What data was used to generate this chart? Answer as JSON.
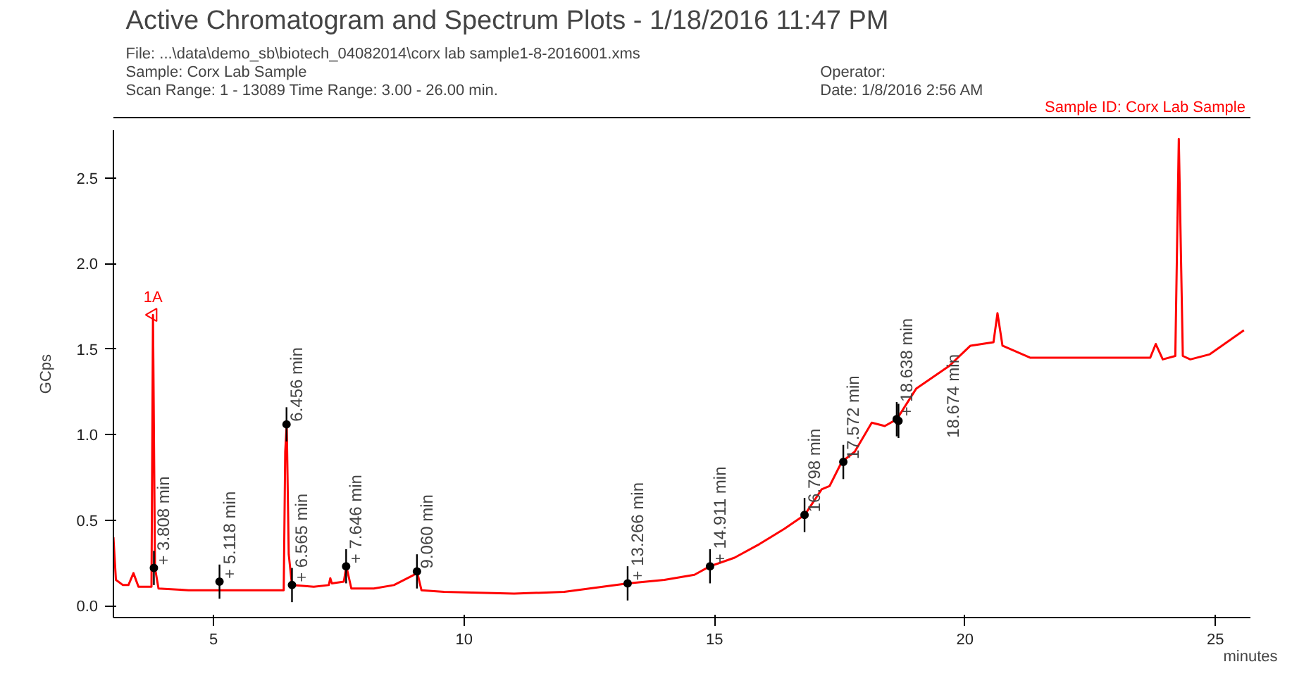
{
  "chart_data": {
    "type": "line",
    "title": "Active Chromatogram and Spectrum Plots - 1/18/2016 11:47 PM",
    "subtitle": "File: ...\\data\\demo_sb\\biotech_04082014\\corx lab sample1-8-2016001.xms",
    "xlabel": "minutes",
    "ylabel": "GCps",
    "x": [
      3.0,
      3.05,
      3.19,
      3.3,
      3.4,
      3.5,
      3.76,
      3.79,
      3.83,
      3.9,
      4.5,
      5.1,
      5.5,
      6.0,
      6.4,
      6.43,
      6.46,
      6.5,
      6.565,
      7.0,
      7.3,
      7.33,
      7.36,
      7.6,
      7.65,
      7.75,
      8.2,
      8.6,
      9.0,
      9.06,
      9.15,
      9.6,
      11,
      12,
      13.27,
      14,
      14.6,
      14.91,
      15.4,
      15.9,
      16.4,
      16.8,
      17.14,
      17.3,
      17.54,
      17.8,
      18.14,
      18.4,
      18.64,
      19.03,
      19.68,
      20.11,
      20.57,
      20.65,
      20.75,
      21.3,
      22.65,
      23.7,
      23.81,
      23.95,
      24.2,
      24.27,
      24.35,
      24.5,
      24.89,
      25.57
    ],
    "series": [
      {
        "name": "Sample ID: Corx Lab Sample",
        "color": "#ff0000",
        "values": [
          0.4,
          0.15,
          0.12,
          0.12,
          0.19,
          0.11,
          0.11,
          1.7,
          0.22,
          0.1,
          0.09,
          0.09,
          0.09,
          0.09,
          0.09,
          0.9,
          1.06,
          0.3,
          0.12,
          0.11,
          0.12,
          0.16,
          0.13,
          0.14,
          0.23,
          0.1,
          0.1,
          0.12,
          0.18,
          0.2,
          0.09,
          0.08,
          0.07,
          0.08,
          0.13,
          0.15,
          0.18,
          0.23,
          0.28,
          0.36,
          0.45,
          0.53,
          0.68,
          0.7,
          0.84,
          0.9,
          1.07,
          1.05,
          1.09,
          1.27,
          1.4,
          1.52,
          1.54,
          1.71,
          1.52,
          1.45,
          1.45,
          1.45,
          1.53,
          1.44,
          1.46,
          2.73,
          1.46,
          1.44,
          1.47,
          1.61
        ]
      }
    ],
    "xlim": [
      3,
      25.7
    ],
    "ylim": [
      -0.07,
      2.78
    ],
    "xticks": [
      5,
      10,
      15,
      20,
      25
    ],
    "yticks": [
      {
        "value": 0,
        "label": "0.0"
      },
      0.5,
      {
        "value": 1,
        "label": "1.0"
      },
      1.5,
      {
        "value": 2,
        "label": "2.0"
      },
      2.5
    ],
    "annotations": [
      "Sample: Corx Lab Sample",
      "Operator:",
      "Scan Range: 1 - 13089 Time Range: 3.00 - 26.00 min.",
      "Date: 1/8/2016 2:56 AM",
      {
        "text": "1A",
        "x": 3.79,
        "y": 1.7
      },
      {
        "text": "+ 3.808 min",
        "x": 3.808,
        "y": 0.22
      },
      {
        "text": "+ 5.118 min",
        "x": 5.118,
        "y": 0.14
      },
      {
        "text": "6.456 min",
        "x": 6.456,
        "y": 1.06
      },
      {
        "text": "+ 6.565 min",
        "x": 6.565,
        "y": 0.12
      },
      {
        "text": "+ 7.646 min",
        "x": 7.646,
        "y": 0.23
      },
      {
        "text": "9.060 min",
        "x": 9.06,
        "y": 0.2
      },
      {
        "text": "+ 13.266 min",
        "x": 13.266,
        "y": 0.13
      },
      {
        "text": "+ 14.911 min",
        "x": 14.911,
        "y": 0.23
      },
      {
        "text": "16.798 min",
        "x": 16.798,
        "y": 0.53
      },
      {
        "text": "17.572 min",
        "x": 17.572,
        "y": 0.84
      },
      {
        "text": "+ 18.638 min",
        "x": 18.638,
        "y": 1.09
      },
      {
        "text": "18.674 min",
        "x": 18.674,
        "y": 1.08
      }
    ],
    "grid": false,
    "legend": false,
    "marker": "none",
    "line_style": "solid"
  }
}
